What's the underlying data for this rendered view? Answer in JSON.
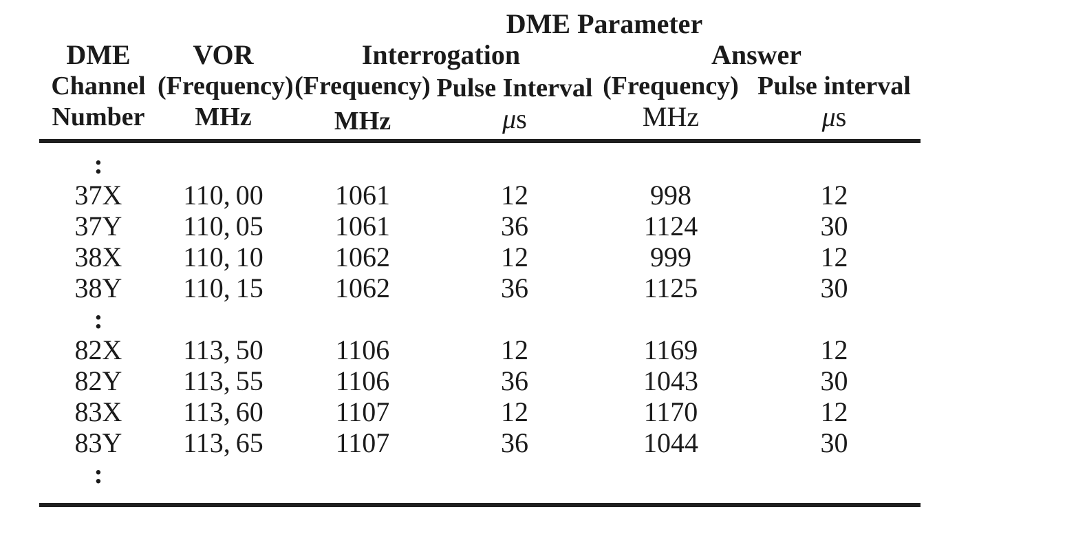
{
  "page": {
    "background": "#ffffff",
    "text_color": "#1b1b1b",
    "rule_color": "#1f1f1f"
  },
  "table": {
    "title": "DME Parameter",
    "groups": {
      "interrogation": "Interrogation",
      "answer": "Answer"
    },
    "header": {
      "channel": {
        "line1": "DME",
        "line2": "Channel",
        "line3": "Number"
      },
      "vor": {
        "line1": "VOR",
        "line2": "(Frequency)",
        "line3": "MHz"
      },
      "int_freq": {
        "line2": "(Frequency)",
        "line3": "MHz"
      },
      "int_pulse": {
        "line2": "Pulse Interval",
        "unit_mu": "μ",
        "unit_s": "s"
      },
      "ans_freq": {
        "line2": "(Frequency)",
        "line3": "MHz"
      },
      "ans_pulse": {
        "line2": "Pulse interval",
        "unit_mu": "μ",
        "unit_s": "s"
      }
    },
    "ellipsis": ":",
    "rows": [
      {
        "channel": "37X",
        "vor": "110, 00",
        "int_freq": "1061",
        "int_pulse": "12",
        "ans_freq": "998",
        "ans_pulse": "12"
      },
      {
        "channel": "37Y",
        "vor": "110, 05",
        "int_freq": "1061",
        "int_pulse": "36",
        "ans_freq": "1124",
        "ans_pulse": "30"
      },
      {
        "channel": "38X",
        "vor": "110, 10",
        "int_freq": "1062",
        "int_pulse": "12",
        "ans_freq": "999",
        "ans_pulse": "12"
      },
      {
        "channel": "38Y",
        "vor": "110, 15",
        "int_freq": "1062",
        "int_pulse": "36",
        "ans_freq": "1125",
        "ans_pulse": "30"
      },
      {
        "channel": "82X",
        "vor": "113, 50",
        "int_freq": "1106",
        "int_pulse": "12",
        "ans_freq": "1169",
        "ans_pulse": "12"
      },
      {
        "channel": "82Y",
        "vor": "113, 55",
        "int_freq": "1106",
        "int_pulse": "36",
        "ans_freq": "1043",
        "ans_pulse": "30"
      },
      {
        "channel": "83X",
        "vor": "113, 60",
        "int_freq": "1107",
        "int_pulse": "12",
        "ans_freq": "1170",
        "ans_pulse": "12"
      },
      {
        "channel": "83Y",
        "vor": "113, 65",
        "int_freq": "1107",
        "int_pulse": "36",
        "ans_freq": "1044",
        "ans_pulse": "30"
      }
    ]
  }
}
